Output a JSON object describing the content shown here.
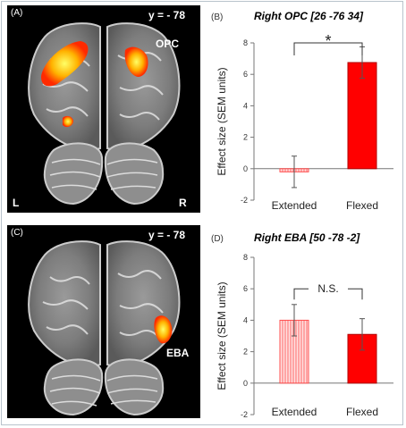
{
  "panels": {
    "A": {
      "letter": "(A)",
      "slice": "y = - 78",
      "region": "OPC",
      "left": "L",
      "right": "R"
    },
    "C": {
      "letter": "(C)",
      "slice": "y = - 78",
      "region": "EBA"
    }
  },
  "colors": {
    "extended_fill": "#ffe0e0",
    "extended_stroke": "#ff4c4c",
    "flexed_fill": "#ff0000",
    "sig_line": "#333333"
  },
  "chart_data": [
    {
      "panel": "(B)",
      "type": "bar",
      "title": "Right OPC [26 -76 34]",
      "ylabel": "Effect size (SEM units)",
      "categories": [
        "Extended",
        "Flexed"
      ],
      "values": [
        -0.2,
        6.75
      ],
      "errors": [
        1.0,
        1.0
      ],
      "ylim": [
        -2,
        8
      ],
      "yticks": [
        -2,
        0,
        2,
        4,
        6,
        8
      ],
      "significance": "*"
    },
    {
      "panel": "(D)",
      "type": "bar",
      "title": "Right EBA [50 -78 -2]",
      "ylabel": "Effect size (SEM units)",
      "categories": [
        "Extended",
        "Flexed"
      ],
      "values": [
        4.0,
        3.1
      ],
      "errors": [
        1.0,
        1.0
      ],
      "ylim": [
        -2,
        8
      ],
      "yticks": [
        -2,
        0,
        2,
        4,
        6,
        8
      ],
      "significance": "N.S."
    }
  ]
}
